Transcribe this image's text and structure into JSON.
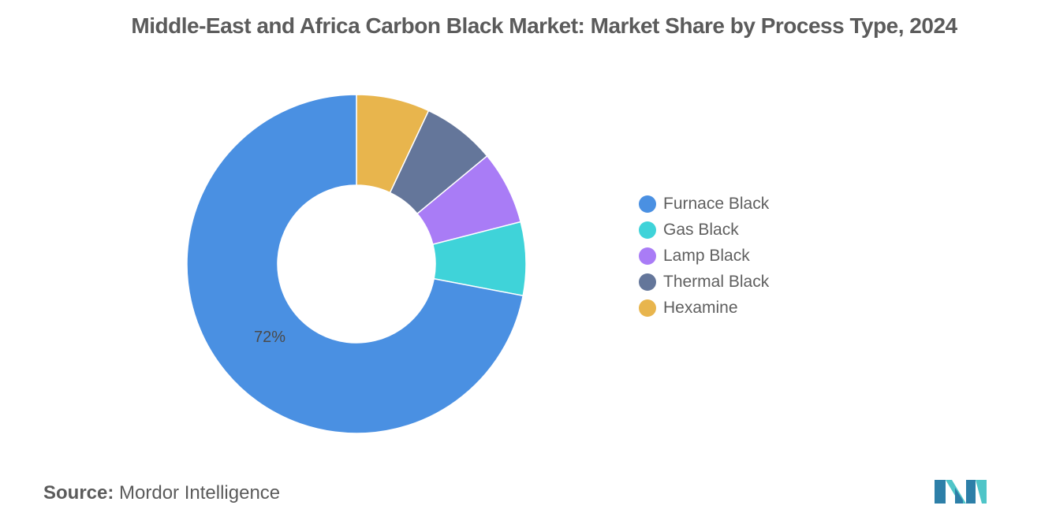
{
  "title": "Middle-East and Africa Carbon Black Market: Market Share by Process Type, 2024",
  "chart_data": {
    "type": "pie",
    "variant": "donut",
    "categories": [
      "Furnace Black",
      "Gas Black",
      "Lamp Black",
      "Thermal Black",
      "Hexamine"
    ],
    "values": [
      72,
      7,
      7,
      7,
      7
    ],
    "colors": [
      "#4a90e2",
      "#3fd3d9",
      "#a97cf6",
      "#64769a",
      "#e8b54d"
    ],
    "data_labels": [
      {
        "category": "Furnace Black",
        "text": "72%"
      }
    ],
    "legend_position": "right"
  },
  "footer": {
    "source_label": "Source:",
    "source_text": "Mordor Intelligence"
  },
  "logo": {
    "icon": "mordor-intelligence-logo-icon",
    "colors": [
      "#2d7fa8",
      "#4fc5c8"
    ]
  }
}
